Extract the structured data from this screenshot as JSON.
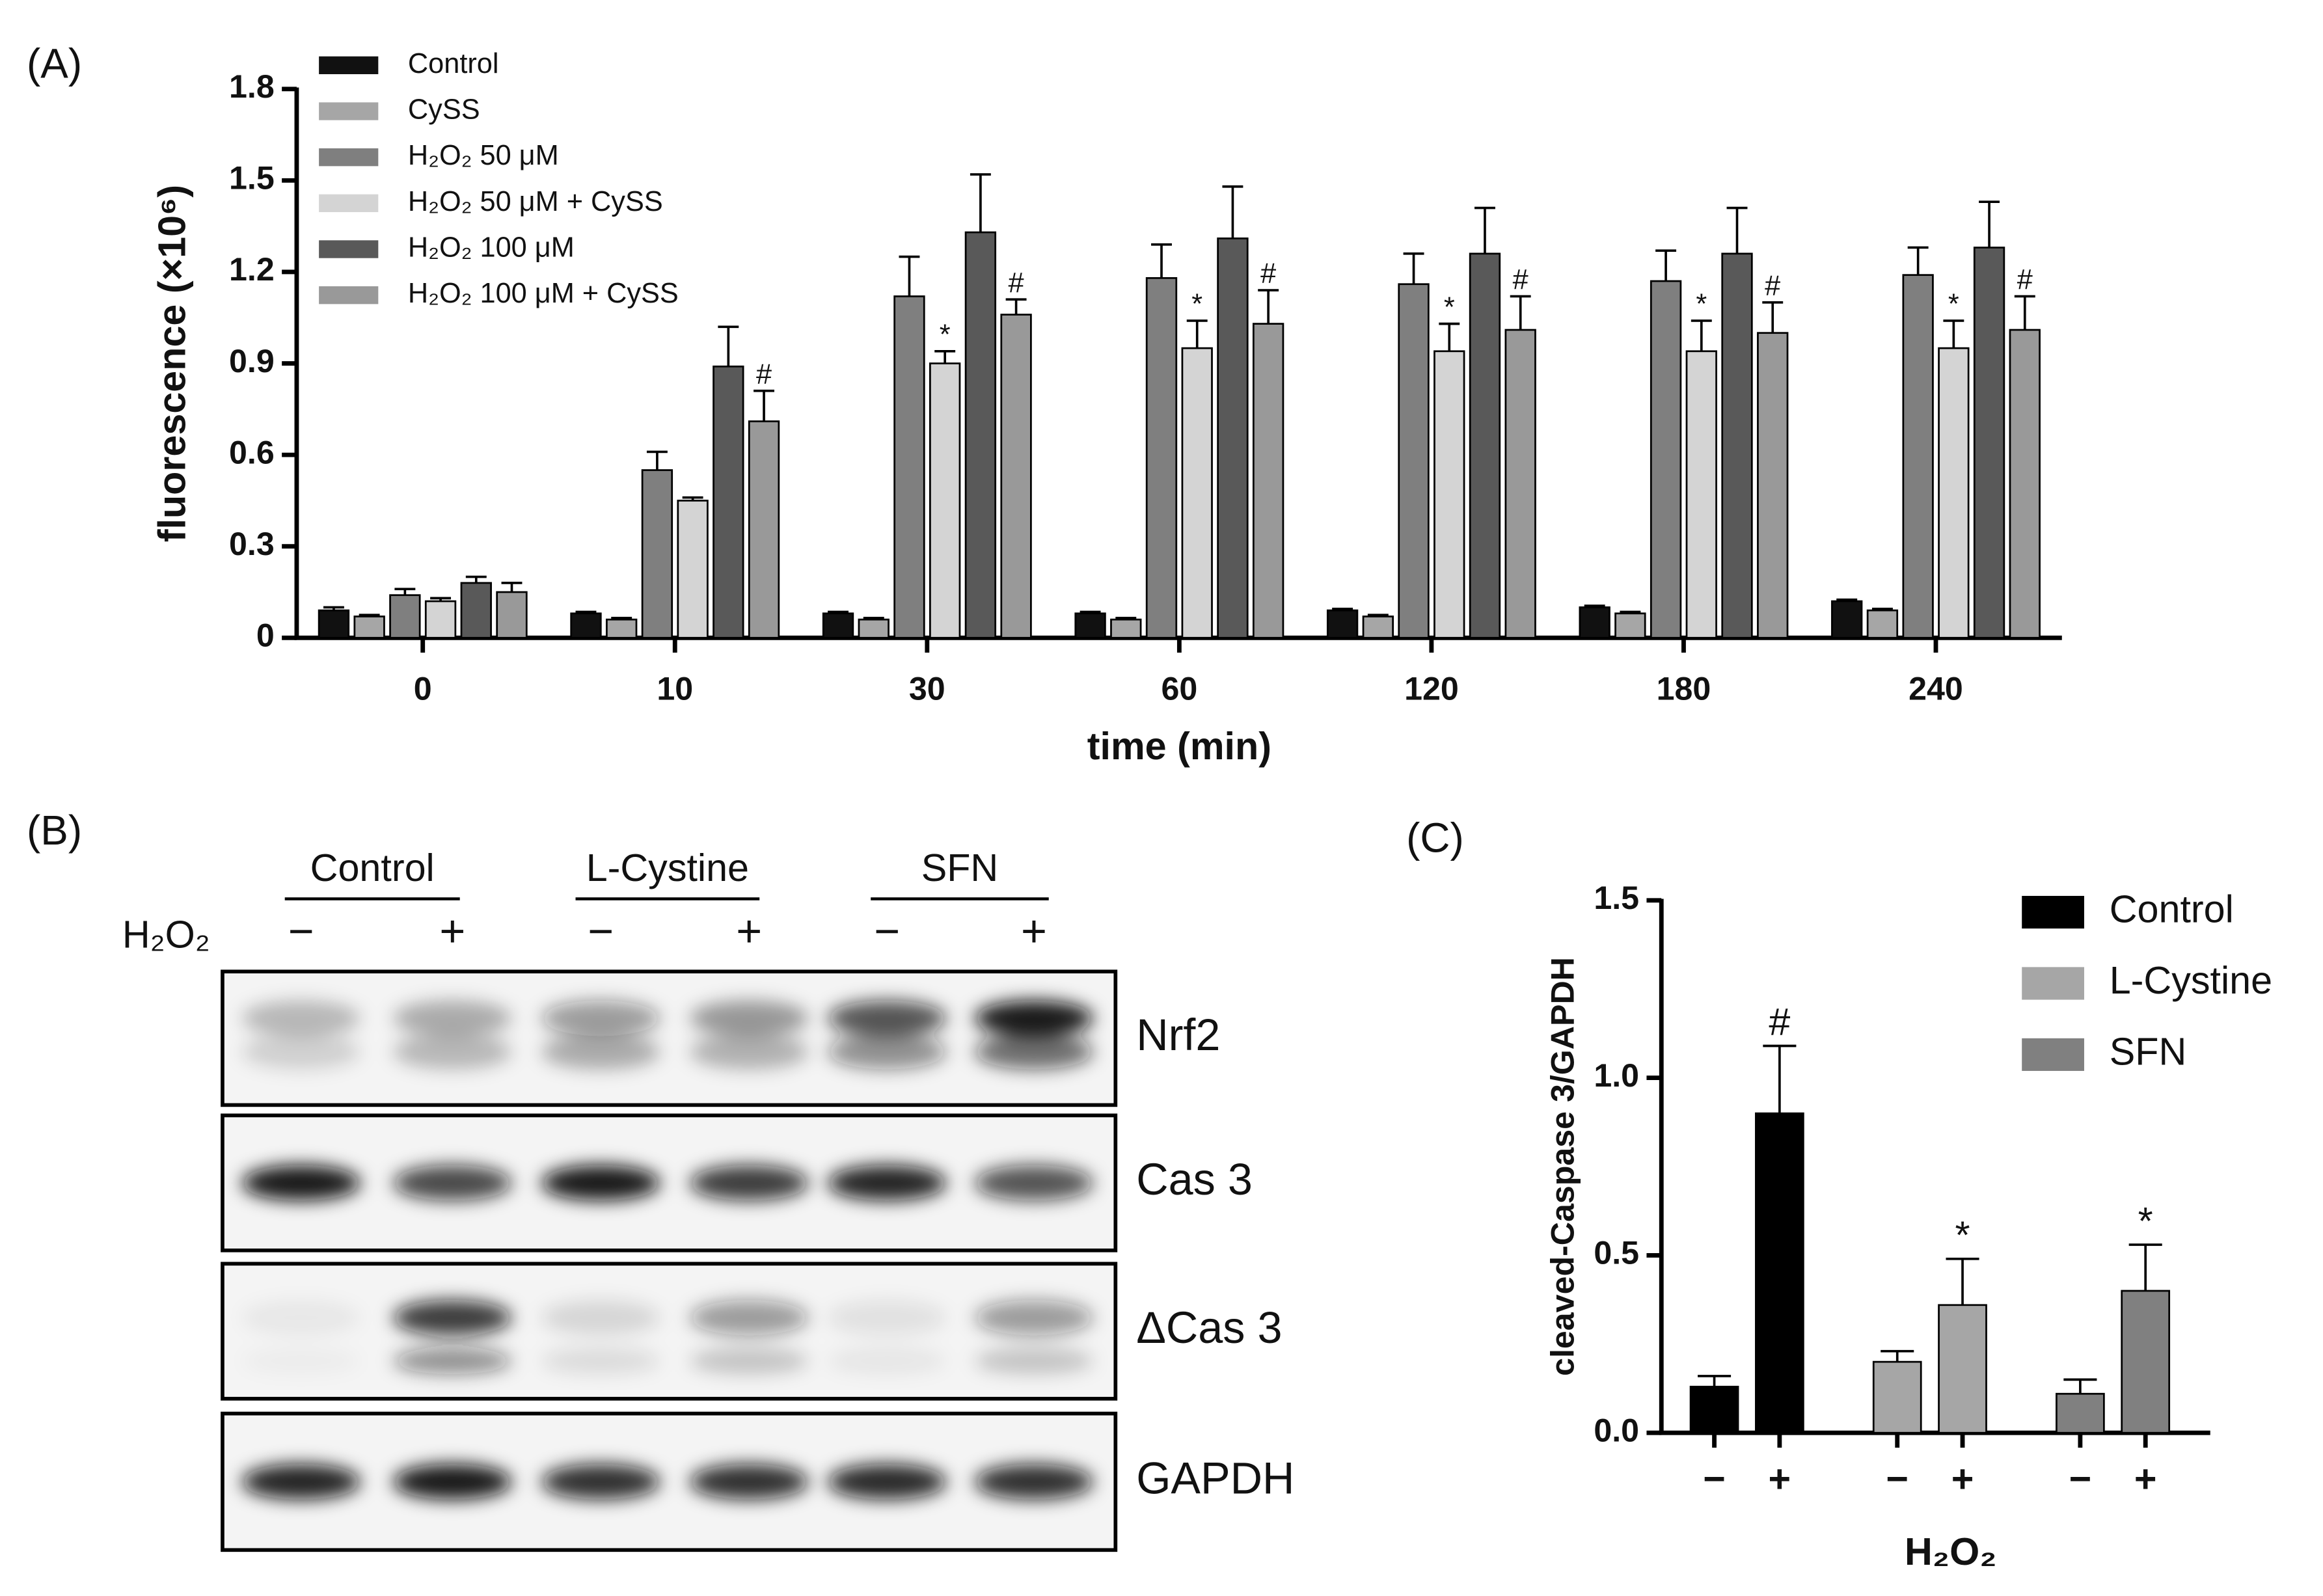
{
  "chart_data": [
    {
      "type": "bar",
      "panel": "(A)",
      "ylabel": "fluorescence (×10⁶)",
      "xlabel": "time (min)",
      "categories": [
        "0",
        "10",
        "30",
        "60",
        "120",
        "180",
        "240"
      ],
      "ylim": [
        0,
        1.8
      ],
      "yticks": [
        0,
        0.3,
        0.6,
        0.9,
        1.2,
        1.5,
        1.8
      ],
      "legend": "upper left",
      "series": [
        {
          "name": "Control",
          "color": "#111111",
          "values": [
            0.09,
            0.08,
            0.08,
            0.08,
            0.09,
            0.1,
            0.12
          ],
          "errors": [
            0.01,
            0.005,
            0.005,
            0.005,
            0.005,
            0.005,
            0.005
          ]
        },
        {
          "name": "CySS",
          "color": "#a6a6a6",
          "values": [
            0.07,
            0.06,
            0.06,
            0.06,
            0.07,
            0.08,
            0.09
          ],
          "errors": [
            0.005,
            0.005,
            0.005,
            0.005,
            0.005,
            0.005,
            0.005
          ]
        },
        {
          "name": "H₂O₂ 50 μM",
          "color": "#7f7f7f",
          "values": [
            0.14,
            0.55,
            1.12,
            1.18,
            1.16,
            1.17,
            1.19
          ],
          "errors": [
            0.02,
            0.06,
            0.13,
            0.11,
            0.1,
            0.1,
            0.09
          ]
        },
        {
          "name": "H₂O₂ 50 μM + CySS",
          "color": "#d4d4d4",
          "values": [
            0.12,
            0.45,
            0.9,
            0.95,
            0.94,
            0.94,
            0.95
          ],
          "errors": [
            0.01,
            0.01,
            0.04,
            0.09,
            0.09,
            0.1,
            0.09
          ],
          "labels": [
            null,
            null,
            "*",
            "*",
            "*",
            "*",
            "*"
          ]
        },
        {
          "name": "H₂O₂ 100 μM",
          "color": "#595959",
          "values": [
            0.18,
            0.89,
            1.33,
            1.31,
            1.26,
            1.26,
            1.28
          ],
          "errors": [
            0.02,
            0.13,
            0.19,
            0.17,
            0.15,
            0.15,
            0.15
          ]
        },
        {
          "name": "H₂O₂ 100 μM + CySS",
          "color": "#999999",
          "values": [
            0.15,
            0.71,
            1.06,
            1.03,
            1.01,
            1.0,
            1.01
          ],
          "errors": [
            0.03,
            0.1,
            0.05,
            0.11,
            0.11,
            0.1,
            0.11
          ],
          "labels": [
            null,
            "#",
            "#",
            "#",
            "#",
            "#",
            "#"
          ]
        }
      ]
    },
    {
      "type": "bar",
      "panel": "(C)",
      "ylabel": "cleaved-Caspase 3/GAPDH",
      "xlabel": "H₂O₂",
      "categories": [
        "−",
        "+"
      ],
      "ylim": [
        0,
        1.5
      ],
      "yticks": [
        {
          "value": 0,
          "label": "0.0"
        },
        {
          "value": 0.5,
          "label": "0.5"
        },
        {
          "value": 1,
          "label": "1.0"
        },
        {
          "value": 1.5,
          "label": "1.5"
        }
      ],
      "legend": "right",
      "series": [
        {
          "name": "Control",
          "color": "#000000",
          "values": [
            0.13,
            0.9
          ],
          "errors": [
            0.03,
            0.19
          ],
          "labels": [
            null,
            "#"
          ]
        },
        {
          "name": "L-Cystine",
          "color": "#a6a6a6",
          "values": [
            0.2,
            0.36
          ],
          "errors": [
            0.03,
            0.13
          ],
          "labels": [
            null,
            "*"
          ]
        },
        {
          "name": "SFN",
          "color": "#808080",
          "values": [
            0.11,
            0.4
          ],
          "errors": [
            0.04,
            0.13
          ],
          "labels": [
            null,
            "*"
          ]
        }
      ]
    }
  ],
  "blot": {
    "panel": "(B)",
    "treatment": "H₂O₂",
    "groups": [
      "Control",
      "L-Cystine",
      "SFN"
    ],
    "lanes": [
      "−",
      "+",
      "−",
      "+",
      "−",
      "+"
    ],
    "bands": [
      "Nrf2",
      "Cas 3",
      "ΔCas 3",
      "GAPDH"
    ]
  }
}
